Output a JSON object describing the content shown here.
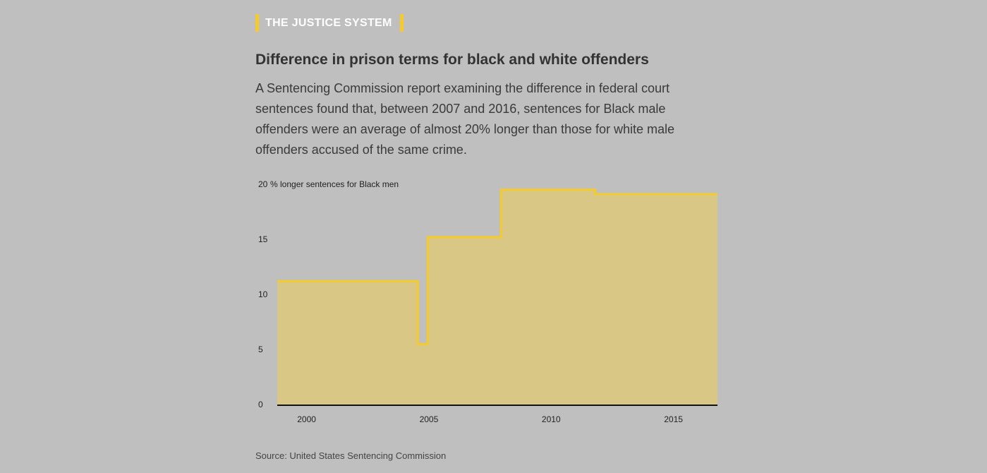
{
  "kicker": "THE JUSTICE SYSTEM",
  "title": "Difference in prison terms for black and white offenders",
  "subtitle": "A Sentencing Commission report examining the difference in federal court sentences found that, between 2007 and 2016, sentences for Black male offenders were an average of almost 20% longer than those for white male offenders accused of the same crime.",
  "source": "Source: United States Sentencing Commission",
  "colors": {
    "line": "#f5cb2b",
    "fill": "#d9c786",
    "baseline": "#111111",
    "background": "#bfbfbf"
  },
  "chart_data": {
    "type": "area",
    "step": true,
    "ylabel_annotation": "% longer sentences for Black men",
    "xlim": [
      1998.8,
      2016.8
    ],
    "ylim": [
      0,
      20
    ],
    "x_ticks": [
      2000,
      2005,
      2010,
      2015
    ],
    "x_tick_labels": [
      "2000",
      "2005",
      "2010",
      "2015"
    ],
    "y_ticks": [
      0,
      5,
      10,
      15,
      20
    ],
    "y_tick_labels": [
      "0",
      "5",
      "10",
      "15",
      "20"
    ],
    "grid": false,
    "segments": [
      {
        "x_start": 1998.8,
        "x_end": 2004.55,
        "value": 11.2
      },
      {
        "x_start": 2004.55,
        "x_end": 2004.95,
        "value": 5.5
      },
      {
        "x_start": 2004.95,
        "x_end": 2007.95,
        "value": 15.2
      },
      {
        "x_start": 2007.95,
        "x_end": 2011.8,
        "value": 19.5
      },
      {
        "x_start": 2011.8,
        "x_end": 2016.8,
        "value": 19.1
      }
    ]
  }
}
